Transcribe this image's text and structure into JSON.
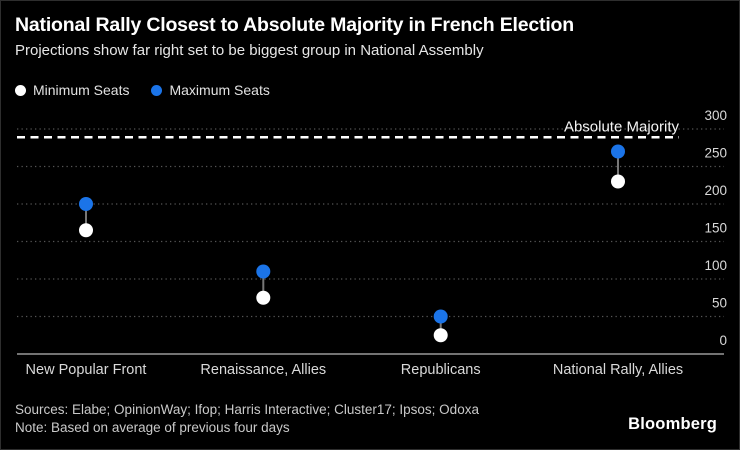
{
  "header": {
    "title": "National Rally Closest to Absolute Majority in French Election",
    "subtitle": "Projections show far right set to be biggest group in National Assembly"
  },
  "legend": [
    {
      "label": "Minimum Seats",
      "color": "#ffffff"
    },
    {
      "label": "Maximum Seats",
      "color": "#1b74e8"
    }
  ],
  "chart_data": {
    "type": "scatter",
    "subtype": "dumbbell-range",
    "categories": [
      "New Popular Front",
      "Renaissance, Allies",
      "Republicans",
      "National Rally, Allies"
    ],
    "series": [
      {
        "name": "Minimum Seats",
        "color": "#ffffff",
        "values": [
          165,
          75,
          25,
          230
        ]
      },
      {
        "name": "Maximum Seats",
        "color": "#1b74e8",
        "values": [
          200,
          110,
          50,
          270
        ]
      }
    ],
    "ylabel": "",
    "xlabel": "",
    "ylim": [
      0,
      300
    ],
    "yticks": [
      0,
      50,
      100,
      150,
      200,
      250,
      300
    ],
    "ytick_side": "right",
    "grid": "horizontal-dotted",
    "legend_position": "top-left",
    "annotation": {
      "label": "Absolute Majority",
      "value": 289,
      "line_style": "dashed-white"
    }
  },
  "footer": {
    "sources": "Sources: Elabe; OpinionWay; Ifop; Harris Interactive; Cluster17; Ipsos; Odoxa",
    "note": "Note: Based on average of previous four days",
    "brand": "Bloomberg"
  },
  "colors": {
    "background": "#000000",
    "title_text": "#ffffff",
    "subtitle_text": "#e6e6e6",
    "tick_text": "#d9d9d9",
    "category_text": "#d9d9d9",
    "gridline": "#555555",
    "axis_line": "#999999",
    "stem": "#777777",
    "majority_line": "#ffffff",
    "min_dot": "#ffffff",
    "max_dot": "#1b74e8"
  }
}
